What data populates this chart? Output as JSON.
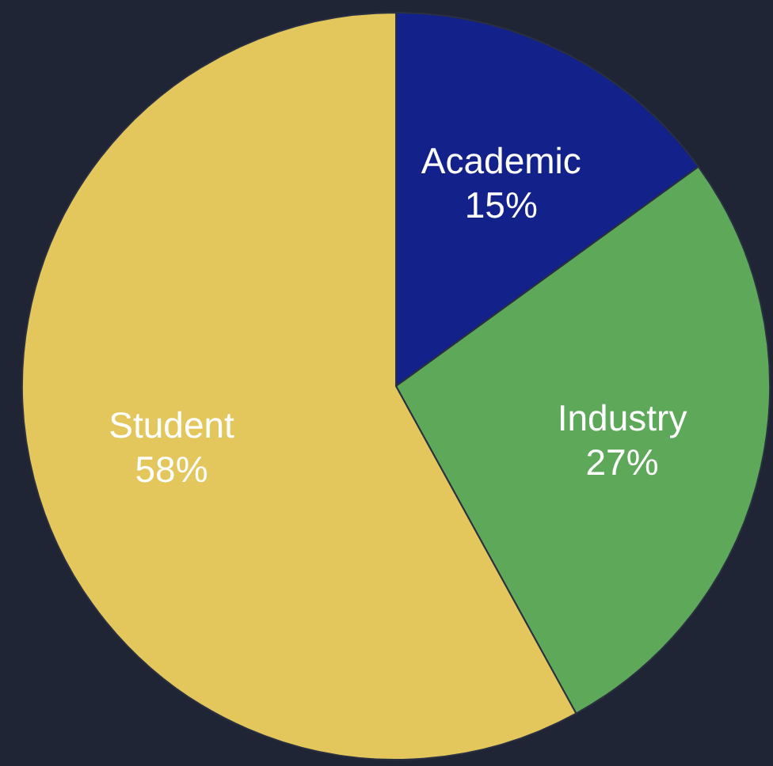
{
  "chart_data": {
    "type": "pie",
    "categories": [
      "Academic",
      "Industry",
      "Student"
    ],
    "values": [
      15,
      27,
      58
    ],
    "colors": [
      "#13218a",
      "#5ea85a",
      "#e4c75c"
    ],
    "value_labels": [
      "15%",
      "27%",
      "58%"
    ]
  }
}
